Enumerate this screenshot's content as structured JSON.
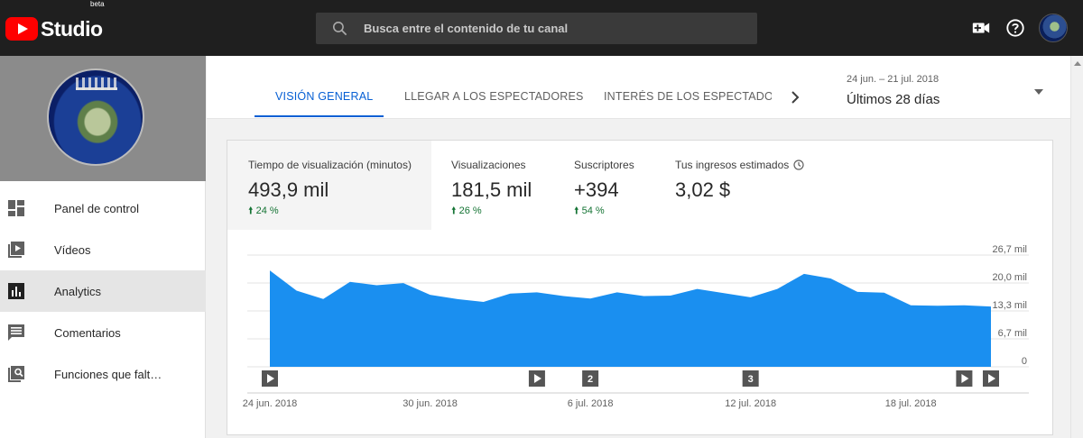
{
  "topbar": {
    "logo_text": "Studio",
    "logo_badge": "beta",
    "search_placeholder": "Busca entre el contenido de tu canal",
    "icons": [
      "search-icon",
      "create-video-icon",
      "help-icon",
      "account-avatar"
    ]
  },
  "sidebar": {
    "items": [
      {
        "label": "Panel de control",
        "icon": "dashboard-icon"
      },
      {
        "label": "Vídeos",
        "icon": "videos-icon"
      },
      {
        "label": "Analytics",
        "icon": "analytics-icon",
        "active": true
      },
      {
        "label": "Comentarios",
        "icon": "comments-icon"
      },
      {
        "label": "Funciones que falt…",
        "icon": "missing-features-icon"
      }
    ]
  },
  "header": {
    "tabs": [
      {
        "label": "VISIÓN GENERAL",
        "active": true
      },
      {
        "label": "LLEGAR A LOS ESPECTADORES"
      },
      {
        "label": "INTERÉS DE LOS ESPECTADORES"
      }
    ],
    "date_range": "24 jun. – 21 jul. 2018",
    "period": "Últimos 28 días"
  },
  "metrics": [
    {
      "label": "Tiempo de visualización (minutos)",
      "value": "493,9 mil",
      "change": "24 %",
      "selected": true
    },
    {
      "label": "Visualizaciones",
      "value": "181,5 mil",
      "change": "26 %"
    },
    {
      "label": "Suscriptores",
      "value": "+394",
      "change": "54 %"
    },
    {
      "label": "Tus ingresos estimados",
      "value": "3,02 $",
      "change": ""
    }
  ],
  "colors": {
    "accent": "#065fd4",
    "chart_fill": "#1a8ff0",
    "positive": "#137333",
    "topbar": "#1f1f1f",
    "brand_red": "#ff0000"
  },
  "chart_data": {
    "type": "area",
    "x": [
      "24 jun.",
      "25 jun.",
      "26 jun.",
      "27 jun.",
      "28 jun.",
      "29 jun.",
      "30 jun.",
      "1 jul.",
      "2 jul.",
      "3 jul.",
      "4 jul.",
      "5 jul.",
      "6 jul.",
      "7 jul.",
      "8 jul.",
      "9 jul.",
      "10 jul.",
      "11 jul.",
      "12 jul.",
      "13 jul.",
      "14 jul.",
      "15 jul.",
      "16 jul.",
      "17 jul.",
      "18 jul.",
      "19 jul.",
      "20 jul.",
      "21 jul."
    ],
    "values": [
      23.0,
      18.2,
      16.2,
      20.3,
      19.5,
      20.0,
      17.2,
      16.2,
      15.5,
      17.5,
      17.8,
      16.9,
      16.3,
      17.8,
      16.9,
      17.0,
      18.6,
      17.6,
      16.6,
      18.6,
      22.2,
      21.1,
      17.9,
      17.7,
      14.7,
      14.6,
      14.7,
      14.4
    ],
    "ylim": [
      0,
      26.7
    ],
    "y_ticks": [
      "0",
      "6,7 mil",
      "13,3 mil",
      "20,0 mil",
      "26,7 mil"
    ],
    "x_tick_labels": [
      "24 jun. 2018",
      "30 jun. 2018",
      "6 jul. 2018",
      "12 jul. 2018",
      "18 jul. 2018"
    ],
    "grid": true,
    "markers": [
      {
        "type": "play",
        "date": "24 jun."
      },
      {
        "type": "play",
        "date": "4 jul."
      },
      {
        "type": "number",
        "label": "2",
        "date": "6 jul."
      },
      {
        "type": "number",
        "label": "3",
        "date": "12 jul."
      },
      {
        "type": "play",
        "date": "20 jul."
      },
      {
        "type": "play",
        "date": "21 jul."
      }
    ]
  }
}
